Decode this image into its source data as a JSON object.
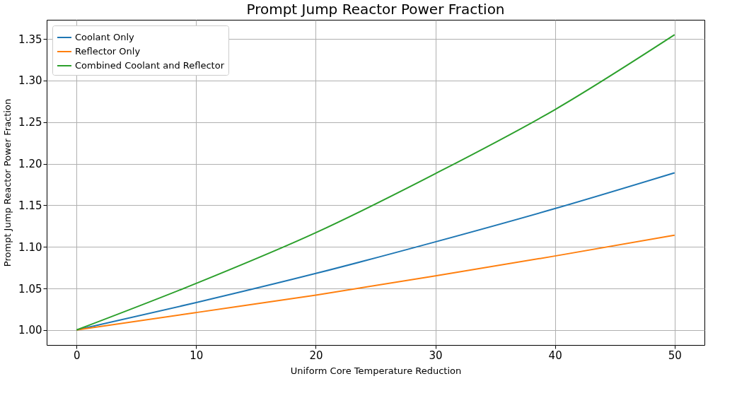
{
  "chart_data": {
    "type": "line",
    "title": "Prompt Jump Reactor Power Fraction",
    "xlabel": "Uniform Core Temperature Reduction",
    "ylabel": "Prompt Jump Reactor Power Fraction",
    "x": [
      0,
      10,
      20,
      30,
      40,
      50
    ],
    "series": [
      {
        "name": "Coolant Only",
        "color": "#1f77b4",
        "values": [
          1.0,
          1.033,
          1.068,
          1.106,
          1.146,
          1.189
        ]
      },
      {
        "name": "Reflector Only",
        "color": "#ff7f0e",
        "values": [
          1.0,
          1.021,
          1.042,
          1.065,
          1.089,
          1.114
        ]
      },
      {
        "name": "Combined Coolant and Reflector",
        "color": "#2ca02c",
        "values": [
          1.0,
          1.056,
          1.117,
          1.188,
          1.265,
          1.355
        ]
      }
    ],
    "xlim": [
      -2.5,
      52.5
    ],
    "ylim": [
      0.982,
      1.373
    ],
    "xticks": [
      0,
      10,
      20,
      30,
      40,
      50
    ],
    "yticks": [
      {
        "value": 1,
        "label": "1.00"
      },
      {
        "value": 1.05,
        "label": "1.05"
      },
      {
        "value": 1.1,
        "label": "1.10"
      },
      {
        "value": 1.15,
        "label": "1.15"
      },
      {
        "value": 1.2,
        "label": "1.20"
      },
      {
        "value": 1.25,
        "label": "1.25"
      },
      {
        "value": 1.3,
        "label": "1.30"
      },
      {
        "value": 1.35,
        "label": "1.35"
      }
    ],
    "grid": true,
    "legend": "top left",
    "line_style": "solid",
    "marker": "none"
  }
}
